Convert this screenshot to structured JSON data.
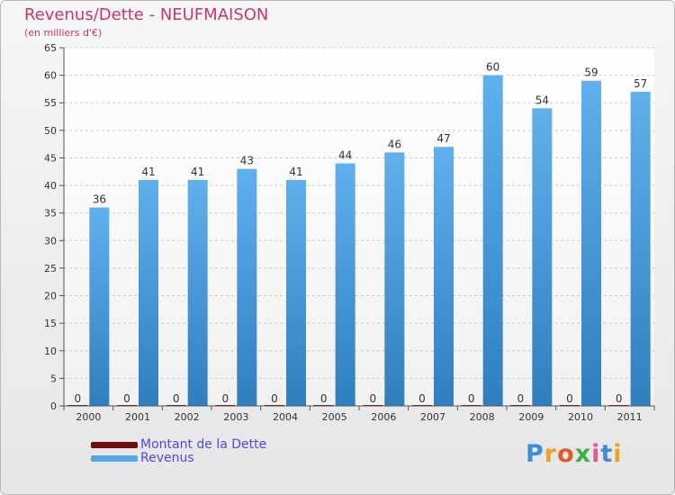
{
  "title": "Revenus/Dette - NEUFMAISON",
  "subtitle": "(en milliers d'€)",
  "brand": "Proxiti",
  "colors": {
    "title": "#c9376a",
    "dette": "#6b0f0f",
    "revenus": "#55a6e4",
    "legend_text": "#4a4ae0",
    "axis_text": "#333333",
    "grid": "#c8c8c8"
  },
  "chart_data": {
    "type": "bar",
    "title": "Revenus/Dette - NEUFMAISON",
    "subtitle": "(en milliers d'€)",
    "xlabel": "",
    "ylabel": "",
    "ylim": [
      0,
      65
    ],
    "yticks": [
      0,
      5,
      10,
      15,
      20,
      25,
      30,
      35,
      40,
      45,
      50,
      55,
      60,
      65
    ],
    "grid": true,
    "categories": [
      "2000",
      "2001",
      "2002",
      "2003",
      "2004",
      "2005",
      "2006",
      "2007",
      "2008",
      "2009",
      "2010",
      "2011"
    ],
    "series": [
      {
        "name": "Montant de la Dette",
        "color": "#6b0f0f",
        "values": [
          0,
          0,
          0,
          0,
          0,
          0,
          0,
          0,
          0,
          0,
          0,
          0
        ]
      },
      {
        "name": "Revenus",
        "color": "#55a6e4",
        "values": [
          36,
          41,
          41,
          43,
          41,
          44,
          46,
          47,
          60,
          54,
          59,
          57
        ]
      }
    ],
    "legend_position": "bottom-left"
  }
}
